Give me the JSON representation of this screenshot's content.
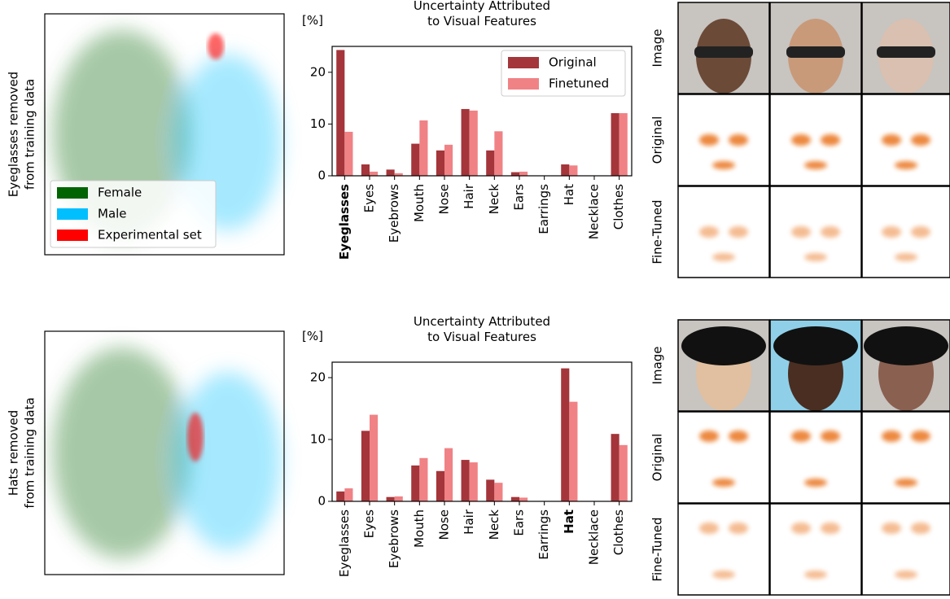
{
  "chart_data": [
    {
      "type": "scatter",
      "ylabel": [
        "Eyeglasses removed",
        "from training data"
      ],
      "legend_loc": "lower left",
      "series": [
        {
          "name": "Female",
          "color": "#006400"
        },
        {
          "name": "Male",
          "color": "#00bfff"
        },
        {
          "name": "Experimental set",
          "color": "#ff0000"
        }
      ]
    },
    {
      "type": "bar",
      "title": [
        "Uncertainty Attributed",
        "to Visual Features"
      ],
      "ylabel": "[%]",
      "categories": [
        "Eyeglasses",
        "Eyes",
        "Eyebrows",
        "Mouth",
        "Nose",
        "Hair",
        "Neck",
        "Ears",
        "Earrings",
        "Hat",
        "Necklace",
        "Clothes"
      ],
      "bold_category": 0,
      "series": [
        {
          "name": "Original",
          "color": "#a4353a",
          "values": [
            24.3,
            2.2,
            1.2,
            6.2,
            4.9,
            12.9,
            4.9,
            0.7,
            0,
            2.2,
            0,
            12.1
          ]
        },
        {
          "name": "Finetuned",
          "color": "#f08285",
          "values": [
            8.5,
            0.8,
            0.5,
            10.7,
            6.0,
            12.6,
            8.6,
            0.8,
            0,
            2.0,
            0,
            12.1
          ]
        }
      ],
      "ylim": [
        0,
        25
      ],
      "yticks": [
        0,
        10,
        20
      ],
      "legend_loc": "upper right"
    },
    {
      "type": "scatter",
      "ylabel": [
        "Hats removed",
        "from training data"
      ]
    },
    {
      "type": "bar",
      "title": [
        "Uncertainty Attributed",
        "to Visual Features"
      ],
      "ylabel": "[%]",
      "categories": [
        "Eyeglasses",
        "Eyes",
        "Eyebrows",
        "Mouth",
        "Nose",
        "Hair",
        "Neck",
        "Ears",
        "Earrings",
        "Hat",
        "Necklace",
        "Clothes"
      ],
      "bold_category": 9,
      "series": [
        {
          "name": "Original",
          "color": "#a4353a",
          "values": [
            1.6,
            11.4,
            0.7,
            5.8,
            4.9,
            6.7,
            3.5,
            0.7,
            0,
            21.5,
            0,
            10.9
          ]
        },
        {
          "name": "Finetuned",
          "color": "#f08285",
          "values": [
            2.1,
            14.0,
            0.8,
            7.0,
            8.6,
            6.3,
            3.0,
            0.6,
            0,
            16.1,
            0,
            9.1
          ]
        }
      ],
      "ylim": [
        0,
        22.5
      ],
      "yticks": [
        0,
        10,
        20
      ]
    }
  ],
  "image_grids": [
    {
      "row_labels": [
        "Image",
        "Original",
        "Fine-Tuned"
      ]
    },
    {
      "row_labels": [
        "Image",
        "Original",
        "Fine-Tuned"
      ]
    }
  ]
}
